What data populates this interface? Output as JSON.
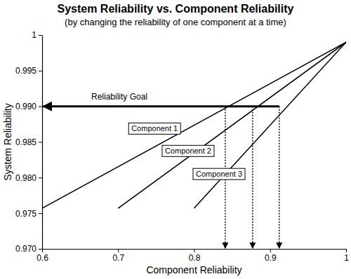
{
  "chart_data": {
    "type": "line",
    "title": "System Reliability vs. Component Reliability",
    "subtitle": "(by changing the reliability of one component at a time)",
    "x_label": "Component Reliability",
    "y_label": "System Reliability",
    "xlim": [
      0.6,
      1
    ],
    "ylim": [
      0.97,
      1
    ],
    "xticks": [
      0.6,
      0.7,
      0.8,
      0.9,
      1
    ],
    "yticks": [
      {
        "value": 0.97,
        "label": "0.970"
      },
      0.975,
      {
        "value": 0.98,
        "label": "0.980"
      },
      0.985,
      {
        "value": 0.99,
        "label": "0.990"
      },
      0.995,
      1
    ],
    "grid": false,
    "color": "#000000",
    "series": [
      {
        "name": "Component 1",
        "x": [
          0.6,
          1
        ],
        "values": [
          0.9757,
          0.999
        ]
      },
      {
        "name": "Component 2",
        "x": [
          0.7,
          1
        ],
        "values": [
          0.9757,
          0.999
        ]
      },
      {
        "name": "Component 3",
        "x": [
          0.8,
          1
        ],
        "values": [
          0.9757,
          0.999
        ]
      }
    ],
    "goal": {
      "label": "Reliability Goal",
      "value": 0.99
    },
    "goal_crossings": [
      0.841,
      0.877,
      0.912
    ]
  }
}
